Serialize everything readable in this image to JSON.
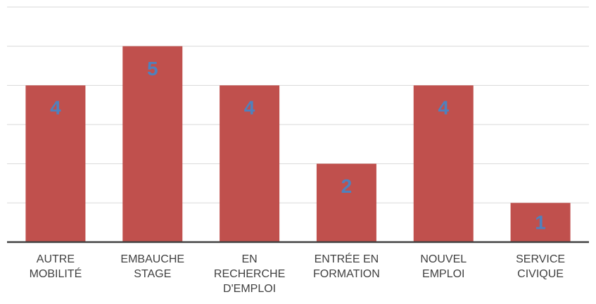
{
  "chart_data": {
    "type": "bar",
    "categories": [
      [
        "AUTRE",
        "MOBILITÉ"
      ],
      [
        "EMBAUCHE",
        "STAGE"
      ],
      [
        "EN",
        "RECHERCHE",
        "D'EMPLOI"
      ],
      [
        "ENTRÉE EN",
        "FORMATION"
      ],
      [
        "NOUVEL",
        "EMPLOI"
      ],
      [
        "SERVICE",
        "CIVIQUE"
      ]
    ],
    "values": [
      4,
      5,
      4,
      2,
      4,
      1
    ],
    "color": "#c0504d",
    "label_color": "#4f81bd",
    "ylim": [
      0,
      6
    ],
    "yticks": [
      0,
      1,
      2,
      3,
      4,
      5,
      6
    ],
    "grid": true
  }
}
